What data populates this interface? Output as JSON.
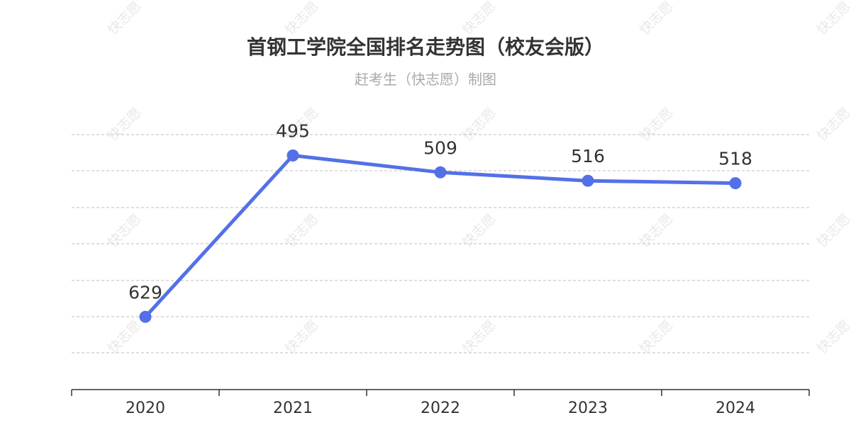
{
  "chart_data": {
    "type": "line",
    "title": "首钢工学院全国排名走势图（校友会版）",
    "subtitle": "赶考生（快志愿）制图",
    "categories": [
      "2020",
      "2021",
      "2022",
      "2023",
      "2024"
    ],
    "series": [
      {
        "values": [
          629,
          495,
          509,
          516,
          518
        ]
      }
    ],
    "y_inverted": true,
    "grid": true,
    "line_color": "#5470e8"
  },
  "watermark": "快志愿"
}
